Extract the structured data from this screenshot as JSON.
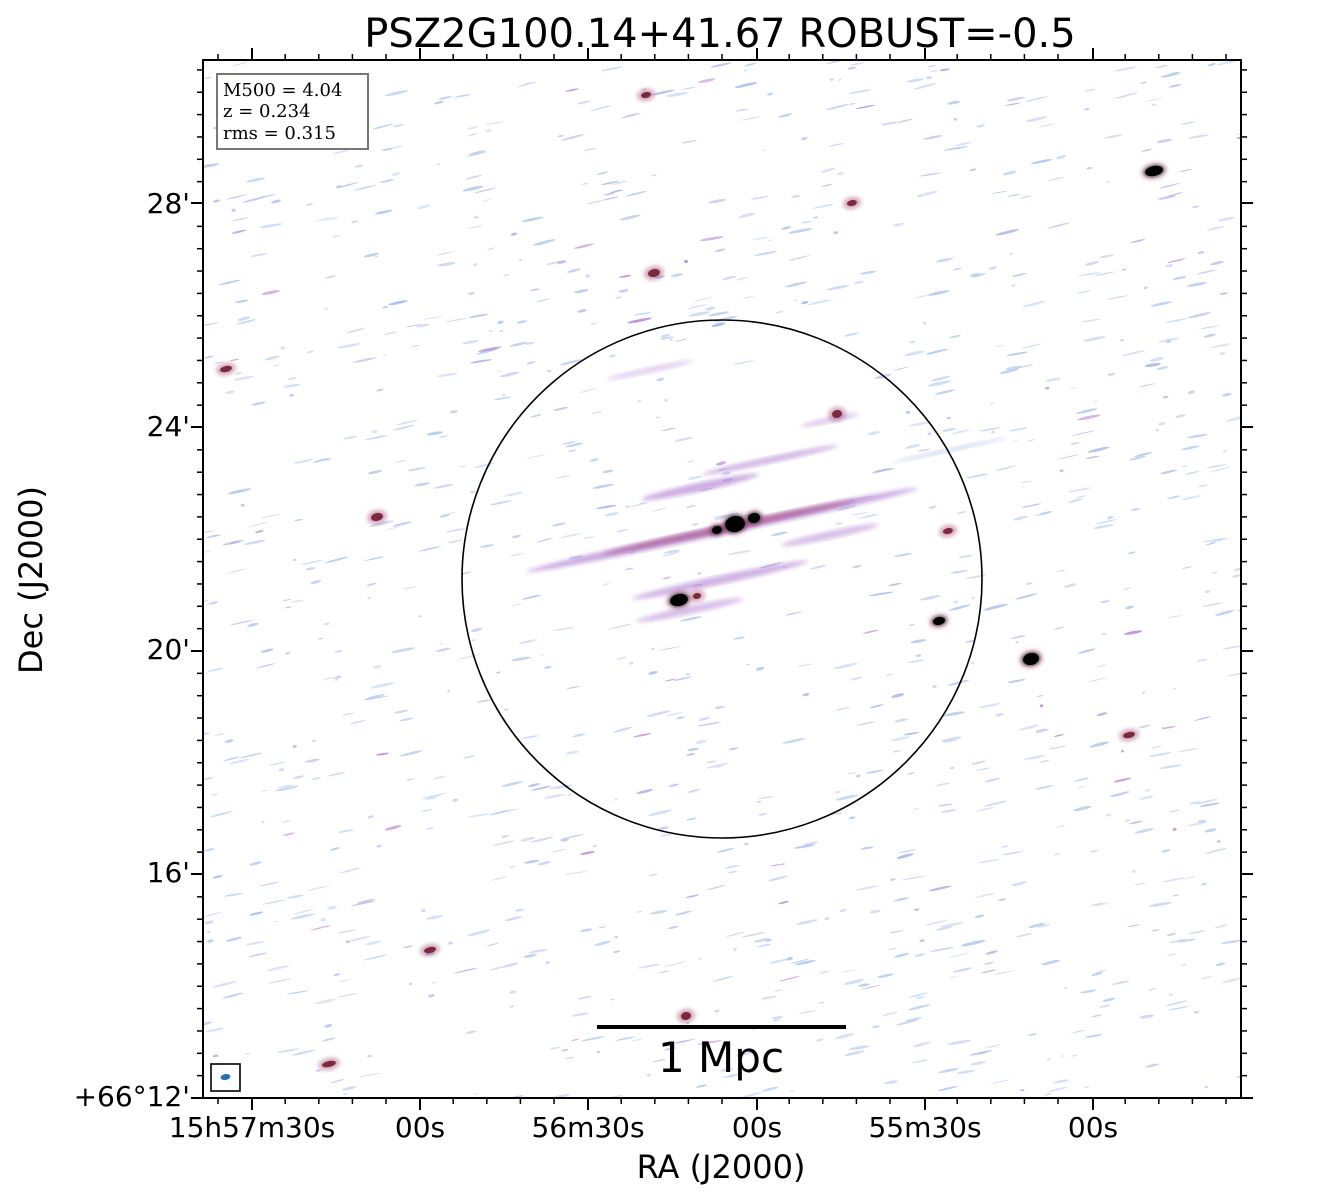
{
  "chart_data": {
    "type": "image",
    "title": "PSZ2G100.14+41.67 ROBUST=-0.5",
    "xlabel": "RA (J2000)",
    "ylabel": "Dec (J2000)",
    "x_tick_labels": [
      "15h57m30s",
      "00s",
      "56m30s",
      "00s",
      "55m30s",
      "00s"
    ],
    "y_tick_labels": [
      "+66°12'",
      "16'",
      "20'",
      "24'",
      "28'"
    ],
    "info_box": [
      "M500 = 4.04",
      "z = 0.234",
      "rms = 0.315"
    ],
    "scale_bar_label": "1 Mpc",
    "colors": {
      "faint_emission": "#b3c8ec",
      "moderate_emission": "#b88ad6",
      "strong_emission": "#a2406f",
      "source_core": "#000000"
    }
  }
}
